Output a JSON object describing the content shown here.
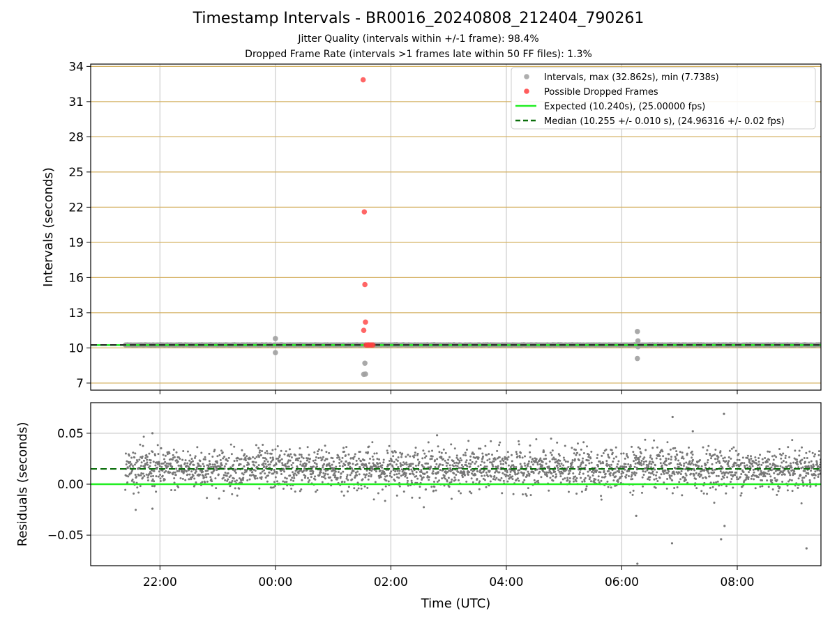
{
  "figure": {
    "title": "Timestamp Intervals - BR0016_20240808_212404_790261",
    "subtitle_1": "Jitter Quality (intervals within +/-1 frame): 98.4%",
    "subtitle_2": "Dropped Frame Rate (intervals >1 frames late within 50 FF files): 1.3%"
  },
  "colors": {
    "intervals": "#a0a0a0",
    "dropped": "#ff4040",
    "expected": "#22ee22",
    "median": "#0b6e0b",
    "residuals": "#777777",
    "hgrid_top": "#d4b060",
    "grid": "#cccccc"
  },
  "chart_data": [
    {
      "type": "scatter",
      "panel": "top",
      "ylabel": "Intervals (seconds)",
      "xlabel": "",
      "x_unit": "hours since 00:00 UTC",
      "xlim": [
        -3.2,
        9.45
      ],
      "ylim": [
        6.4,
        34.2
      ],
      "yticks": [
        7,
        10,
        13,
        16,
        19,
        22,
        25,
        28,
        31,
        34
      ],
      "xticks": [
        -2,
        0,
        2,
        4,
        6,
        8
      ],
      "xtick_labels": [
        "22:00",
        "00:00",
        "02:00",
        "04:00",
        "06:00",
        "08:00"
      ],
      "grid": "horizontal lines at y ticks (tan), vertical lines at x ticks",
      "legend_position": "top-right",
      "series": [
        {
          "name": "Intervals, max (32.862s), min (7.738s)",
          "kind": "scatter",
          "band": {
            "x_start": -2.6,
            "x_end": 9.45,
            "y": 10.255,
            "spread": 0.01
          },
          "outliers": [
            {
              "x": 0.0,
              "y": 10.8
            },
            {
              "x": 0.0,
              "y": 9.6
            },
            {
              "x": 1.55,
              "y": 8.7
            },
            {
              "x": 1.53,
              "y": 7.75
            },
            {
              "x": 1.56,
              "y": 7.77
            },
            {
              "x": 6.27,
              "y": 11.4
            },
            {
              "x": 6.28,
              "y": 10.6
            },
            {
              "x": 6.28,
              "y": 10.1
            },
            {
              "x": 6.27,
              "y": 9.1
            }
          ]
        },
        {
          "name": "Possible Dropped Frames",
          "kind": "scatter",
          "points": [
            {
              "x": 1.52,
              "y": 32.862
            },
            {
              "x": 1.54,
              "y": 21.6
            },
            {
              "x": 1.55,
              "y": 15.4
            },
            {
              "x": 1.56,
              "y": 12.2
            },
            {
              "x": 1.53,
              "y": 11.5
            },
            {
              "x": 1.57,
              "y": 10.25
            },
            {
              "x": 1.6,
              "y": 10.25
            },
            {
              "x": 1.63,
              "y": 10.25
            },
            {
              "x": 1.66,
              "y": 10.25
            },
            {
              "x": 1.69,
              "y": 10.25
            }
          ]
        },
        {
          "name": "Expected (10.240s), (25.00000 fps)",
          "kind": "hline",
          "y": 10.24
        },
        {
          "name": "Median (10.255 +/- 0.010 s), (24.96316 +/- 0.02 fps)",
          "kind": "hline-dashed",
          "y": 10.255
        }
      ]
    },
    {
      "type": "scatter",
      "panel": "bottom",
      "ylabel": "Residuals (seconds)",
      "xlabel": "Time (UTC)",
      "x_unit": "hours since 00:00 UTC",
      "xlim": [
        -3.2,
        9.45
      ],
      "ylim": [
        -0.08,
        0.08
      ],
      "yticks": [
        -0.05,
        0.0,
        0.05
      ],
      "ytick_labels": [
        "−0.05",
        "0.00",
        "0.05"
      ],
      "xticks": [
        -2,
        0,
        2,
        4,
        6,
        8
      ],
      "xtick_labels": [
        "22:00",
        "00:00",
        "02:00",
        "04:00",
        "06:00",
        "08:00"
      ],
      "grid": "on",
      "series": [
        {
          "kind": "scatter",
          "cloud": {
            "x_start": -2.6,
            "x_end": 9.45,
            "center": 0.015,
            "spread": 0.01
          },
          "outliers": [
            {
              "x": -2.13,
              "y": -0.024
            },
            {
              "x": 6.25,
              "y": -0.031
            },
            {
              "x": 6.27,
              "y": -0.078
            },
            {
              "x": 6.87,
              "y": -0.058
            },
            {
              "x": 7.72,
              "y": -0.054
            },
            {
              "x": 7.78,
              "y": -0.041
            },
            {
              "x": 9.2,
              "y": -0.063
            },
            {
              "x": 6.88,
              "y": 0.066
            },
            {
              "x": 7.77,
              "y": 0.069
            },
            {
              "x": 7.23,
              "y": 0.052
            },
            {
              "x": -2.13,
              "y": 0.05
            },
            {
              "x": 2.8,
              "y": 0.048
            }
          ]
        },
        {
          "kind": "hline",
          "y": 0.0
        },
        {
          "kind": "hline-dashed",
          "y": 0.015
        }
      ]
    }
  ]
}
